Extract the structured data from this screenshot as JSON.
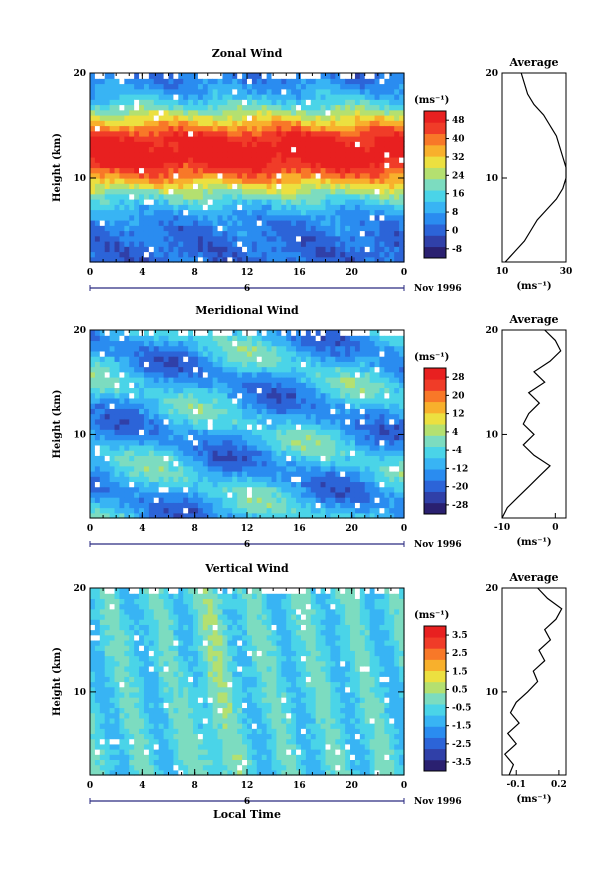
{
  "colors": {
    "palette": [
      "#2a2070",
      "#3040a8",
      "#2c64d8",
      "#2a8cf0",
      "#38b4f4",
      "#4ad4e8",
      "#7cdcc0",
      "#b4e070",
      "#ece040",
      "#f8b02c",
      "#f87828",
      "#f03c28",
      "#e82020"
    ]
  },
  "chart_data": [
    {
      "type": "heatmap",
      "title": "Zonal Wind",
      "ylabel": "Height (km)",
      "xlabel": "",
      "date_label": "Nov 1996",
      "day_label": "6",
      "x_ticks": [
        "0",
        "4",
        "8",
        "12",
        "16",
        "20",
        "0"
      ],
      "y_ticks": [
        "20",
        "10"
      ],
      "ylim": [
        2,
        20
      ],
      "xlim": [
        0,
        24
      ],
      "colorbar": {
        "unit": "(ms⁻¹)",
        "ticks": [
          "48",
          "40",
          "32",
          "24",
          "16",
          "8",
          "0",
          "-8"
        ],
        "range": [
          -8,
          52
        ]
      },
      "profile": {
        "title": "Average",
        "xlabel": "(ms⁻¹)",
        "x_ticks": [
          "10",
          "30"
        ],
        "xlim": [
          10,
          30
        ],
        "y_ticks": [
          "20",
          "10"
        ],
        "height": [
          2,
          3,
          4,
          5,
          6,
          7,
          8,
          9,
          10,
          11,
          12,
          13,
          14,
          15,
          16,
          17,
          18,
          19,
          20
        ],
        "values": [
          11,
          14,
          17,
          19,
          21,
          24,
          27,
          29,
          30,
          30,
          29,
          28,
          27,
          25,
          23,
          20,
          18,
          17,
          16
        ]
      }
    },
    {
      "type": "heatmap",
      "title": "Meridional Wind",
      "ylabel": "Height (km)",
      "xlabel": "",
      "date_label": "Nov 1996",
      "day_label": "6",
      "x_ticks": [
        "0",
        "4",
        "8",
        "12",
        "16",
        "20",
        "0"
      ],
      "y_ticks": [
        "20",
        "10"
      ],
      "ylim": [
        2,
        20
      ],
      "xlim": [
        0,
        24
      ],
      "colorbar": {
        "unit": "(ms⁻¹)",
        "ticks": [
          "28",
          "20",
          "12",
          "4",
          "-4",
          "-12",
          "-20",
          "-28"
        ],
        "range": [
          -32,
          32
        ]
      },
      "profile": {
        "title": "Average",
        "xlabel": "(ms⁻¹)",
        "x_ticks": [
          "-10",
          "0"
        ],
        "xlim": [
          -10,
          2
        ],
        "y_ticks": [
          "20",
          "10"
        ],
        "height": [
          2,
          3,
          4,
          5,
          6,
          7,
          8,
          9,
          10,
          11,
          12,
          13,
          14,
          15,
          16,
          17,
          18,
          19,
          20
        ],
        "values": [
          -10,
          -9,
          -7,
          -5,
          -3,
          -1,
          -4,
          -6,
          -4,
          -6,
          -5,
          -3,
          -5,
          -2,
          -4,
          -1,
          1,
          0,
          -2
        ]
      }
    },
    {
      "type": "heatmap",
      "title": "Vertical Wind",
      "ylabel": "Height (km)",
      "xlabel": "Local Time",
      "date_label": "Nov 1996",
      "day_label": "6",
      "x_ticks": [
        "0",
        "4",
        "8",
        "12",
        "16",
        "20",
        "0"
      ],
      "y_ticks": [
        "20",
        "10"
      ],
      "ylim": [
        2,
        20
      ],
      "xlim": [
        0,
        24
      ],
      "colorbar": {
        "unit": "(ms⁻¹)",
        "ticks": [
          "3.5",
          "2.5",
          "1.5",
          "0.5",
          "-0.5",
          "-1.5",
          "-2.5",
          "-3.5"
        ],
        "range": [
          -4,
          4
        ]
      },
      "profile": {
        "title": "Average",
        "xlabel": "(ms⁻¹)",
        "x_ticks": [
          "-0.1",
          "0.2"
        ],
        "xlim": [
          -0.2,
          0.25
        ],
        "y_ticks": [
          "20",
          "10"
        ],
        "height": [
          2,
          3,
          4,
          5,
          6,
          7,
          8,
          9,
          10,
          11,
          12,
          13,
          14,
          15,
          16,
          17,
          18,
          19,
          20
        ],
        "values": [
          -0.15,
          -0.12,
          -0.18,
          -0.1,
          -0.16,
          -0.08,
          -0.14,
          -0.1,
          -0.02,
          0.05,
          0.02,
          0.1,
          0.06,
          0.14,
          0.1,
          0.18,
          0.22,
          0.12,
          0.05
        ]
      }
    }
  ]
}
